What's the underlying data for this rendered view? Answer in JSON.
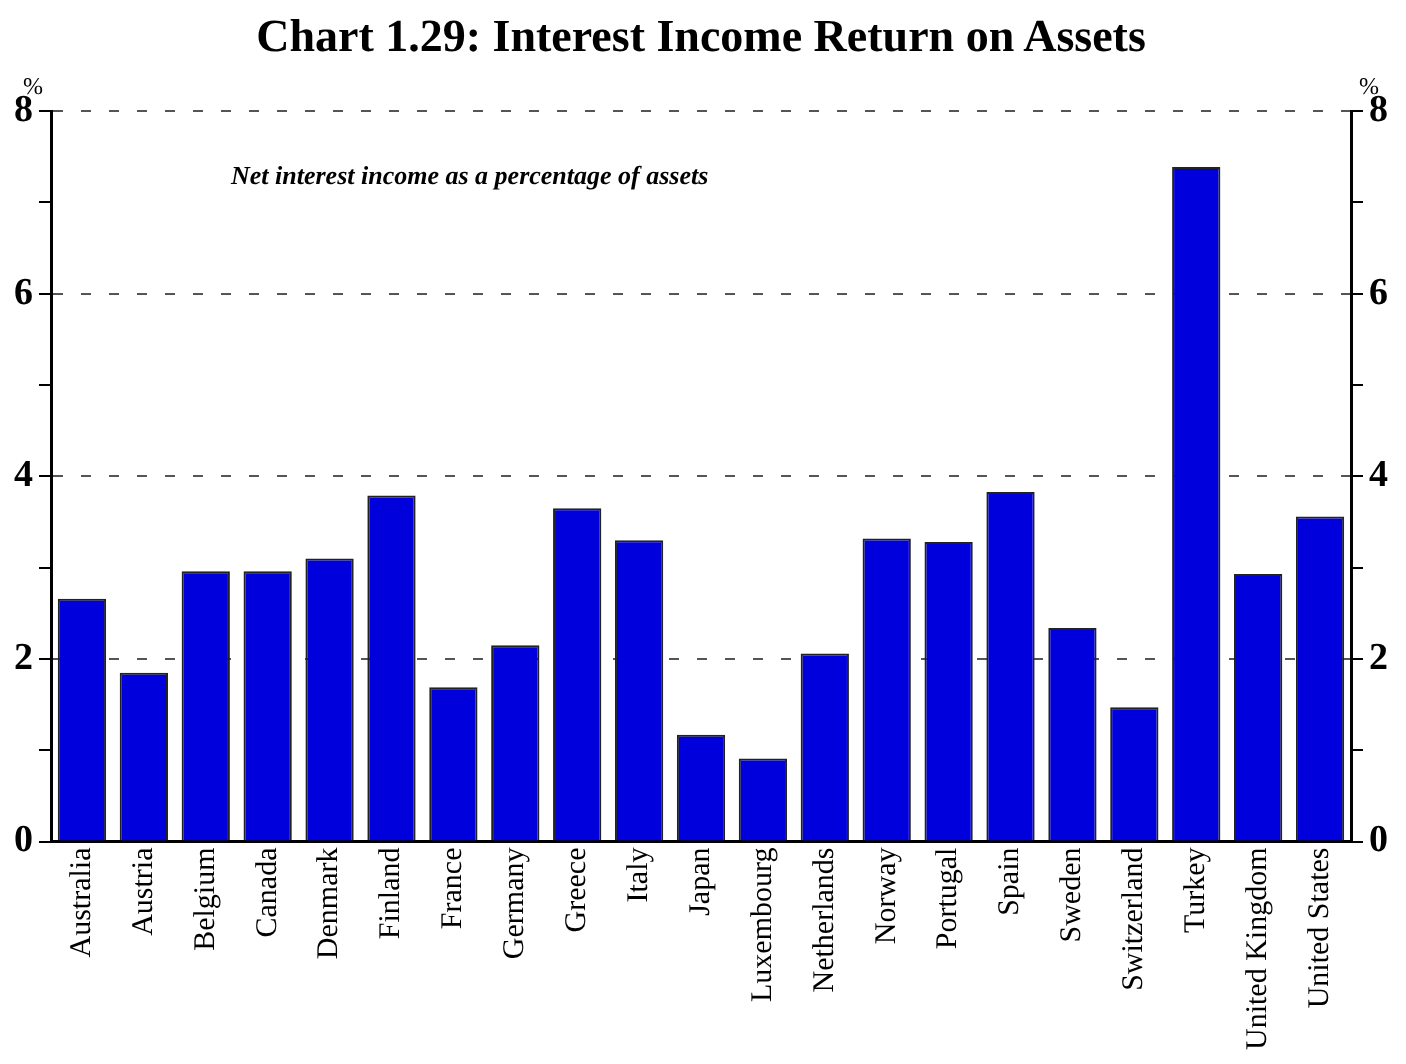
{
  "chart_data": {
    "type": "bar",
    "title": "Chart 1.29: Interest Income Return on Assets",
    "ylabel": "%",
    "y2label": "%",
    "annotations": [
      "Net interest income as a percentage of assets"
    ],
    "categories": [
      "Australia",
      "Austria",
      "Belgium",
      "Canada",
      "Denmark",
      "Finland",
      "France",
      "Germany",
      "Greece",
      "Italy",
      "Japan",
      "Luxembourg",
      "Netherlands",
      "Norway",
      "Portugal",
      "Spain",
      "Sweden",
      "Switzerland",
      "Turkey",
      "United Kingdom",
      "United States"
    ],
    "values": [
      2.66,
      1.85,
      2.96,
      2.96,
      3.1,
      3.79,
      1.69,
      2.15,
      3.65,
      3.3,
      1.17,
      0.91,
      2.06,
      3.32,
      3.28,
      3.83,
      2.34,
      1.47,
      7.39,
      2.93,
      3.56
    ],
    "color": "#0000dd",
    "ylim": [
      0,
      8
    ],
    "yticks": [
      0,
      {
        "value": 1,
        "label": null
      },
      2,
      {
        "value": 3,
        "label": null
      },
      4,
      {
        "value": 5,
        "label": null
      },
      6,
      {
        "value": 7,
        "label": null
      },
      8
    ],
    "y2lim": [
      0,
      8
    ],
    "y2ticks": [
      0,
      {
        "value": 1,
        "label": null
      },
      2,
      {
        "value": 3,
        "label": null
      },
      4,
      {
        "value": 5,
        "label": null
      },
      6,
      {
        "value": 7,
        "label": null
      },
      8
    ],
    "grid": "y",
    "legend": false
  }
}
